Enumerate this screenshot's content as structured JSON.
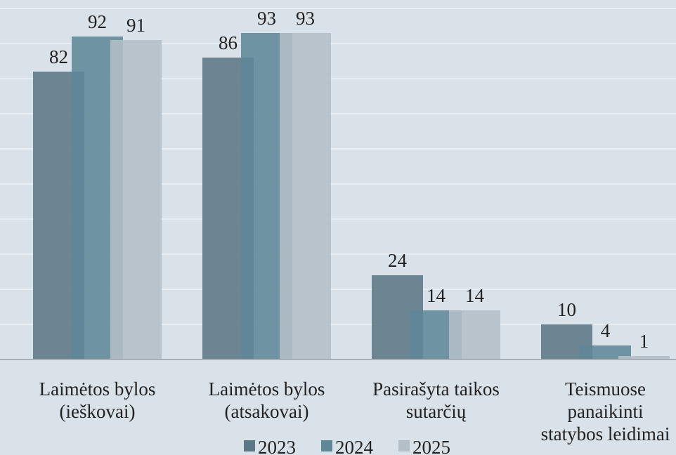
{
  "chart_data": {
    "type": "bar",
    "categories": [
      "Laimėtos bylos\n(ieškovai)",
      "Laimėtos bylos\n(atsakovai)",
      "Pasirašyta taikos\nsutarčių",
      "Teismuose\npanaikinti\nstatybos leidimai"
    ],
    "series": [
      {
        "name": "2023",
        "color": "#5b7885",
        "values": [
          82,
          86,
          24,
          10
        ]
      },
      {
        "name": "2024",
        "color": "#5e8797",
        "values": [
          92,
          93,
          14,
          4
        ]
      },
      {
        "name": "2025",
        "color": "#b4bec6",
        "values": [
          91,
          93,
          14,
          1
        ]
      }
    ],
    "ylim": [
      0,
      100
    ],
    "yticks": [
      0,
      10,
      20,
      30,
      40,
      50,
      60,
      70,
      80,
      90,
      100
    ],
    "grid": true
  }
}
